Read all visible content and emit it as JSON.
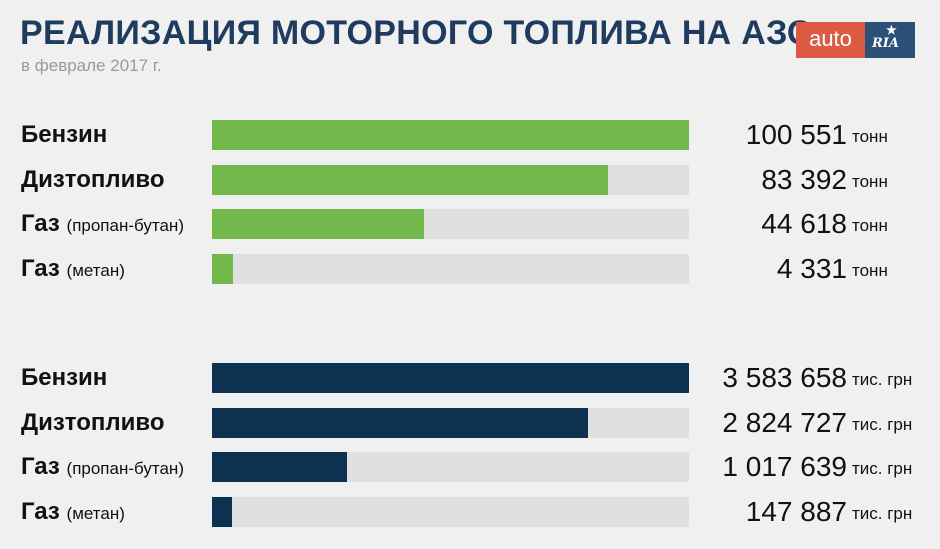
{
  "header": {
    "title": "РЕАЛИЗАЦИЯ МОТОРНОГО ТОПЛИВА НА АЗС",
    "subtitle": "в феврале 2017 г."
  },
  "logo": {
    "left_text": "auto",
    "right_text": "RIA",
    "left_color": "#db5a44",
    "right_color": "#2b5077"
  },
  "chart_data": [
    {
      "type": "bar",
      "orientation": "horizontal",
      "color": "#72b84a",
      "unit": "тонн",
      "xlim": [
        0,
        100551
      ],
      "categories": [
        {
          "name": "Бензин",
          "qualifier": ""
        },
        {
          "name": "Дизтопливо",
          "qualifier": ""
        },
        {
          "name": "Газ",
          "qualifier": "(пропан-бутан)"
        },
        {
          "name": "Газ",
          "qualifier": "(метан)"
        }
      ],
      "values": [
        100551,
        83392,
        44618,
        4331
      ],
      "value_labels": [
        "100 551",
        "83 392",
        "44 618",
        "4 331"
      ]
    },
    {
      "type": "bar",
      "orientation": "horizontal",
      "color": "#0d3150",
      "unit": "тис. грн",
      "xlim": [
        0,
        3583658
      ],
      "categories": [
        {
          "name": "Бензин",
          "qualifier": ""
        },
        {
          "name": "Дизтопливо",
          "qualifier": ""
        },
        {
          "name": "Газ",
          "qualifier": "(пропан-бутан)"
        },
        {
          "name": "Газ",
          "qualifier": "(метан)"
        }
      ],
      "values": [
        3583658,
        2824727,
        1017639,
        147887
      ],
      "value_labels": [
        "3 583 658",
        "2 824 727",
        "1 017 639",
        "147 887"
      ]
    }
  ]
}
